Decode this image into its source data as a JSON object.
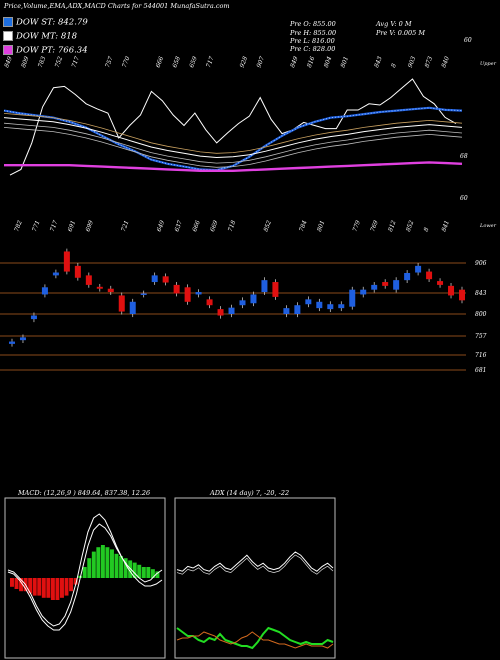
{
  "header": {
    "title": "Price,Volume,EMA,ADX,MACD Charts for 544001 MunafaSutra.com",
    "stats": [
      {
        "label": "Pre  O:",
        "value": "855.00"
      },
      {
        "label": "Pre  H:",
        "value": "855.00"
      },
      {
        "label": "Pre  L:",
        "value": "816.00"
      },
      {
        "label": "Pre  C:",
        "value": "828.00"
      }
    ],
    "avg_v": "Avg V: 0  M",
    "pre_v": "Pre  V: 0.005 M"
  },
  "legend": [
    {
      "label": "DOW ST:",
      "value": "842.79",
      "color": "#1e6fe0"
    },
    {
      "label": "DOW MT:",
      "value": "818",
      "color": "#ffffff"
    },
    {
      "label": "DOW PT:",
      "value": "766.34",
      "color": "#e040e0"
    }
  ],
  "colors": {
    "up": "#1f5fe0",
    "down": "#e01010",
    "grid": "#8a4a1a",
    "macd_pos": "#22c922",
    "macd_neg": "#e01010",
    "adx_white": "#ffffff",
    "adx_green": "#22dd22",
    "adx_orange": "#d2691e"
  },
  "chart_data": [
    {
      "type": "line",
      "panel": "price_ema",
      "top_labels": [
        "849",
        "809",
        "783",
        "752",
        "717",
        "",
        "757",
        "770",
        "",
        "666",
        "658",
        "659",
        "717",
        "",
        "928",
        "907",
        "",
        "849",
        "816",
        "804",
        "801",
        "",
        "843",
        "8",
        "903",
        "873",
        "840"
      ],
      "right_labels": [
        "60",
        "68",
        "60"
      ],
      "corner_label": "Upper",
      "series": [
        {
          "name": "DOW ST",
          "values": [
            842,
            838,
            835,
            832,
            826,
            818,
            806,
            794,
            784,
            772,
            766,
            762,
            758,
            757,
            763,
            776,
            792,
            806,
            818,
            826,
            832,
            834,
            837,
            840,
            842,
            844,
            846,
            843,
            842
          ]
        },
        {
          "name": "DOW MT",
          "values": [
            832,
            830,
            828,
            826,
            822,
            817,
            811,
            804,
            797,
            790,
            785,
            781,
            777,
            775,
            776,
            779,
            784,
            790,
            796,
            801,
            805,
            808,
            812,
            815,
            818,
            820,
            822,
            820,
            818
          ]
        },
        {
          "name": "DOW PT",
          "values": [
            764,
            764,
            764,
            764,
            764,
            763,
            762,
            761,
            760,
            759,
            758,
            757,
            756,
            756,
            756,
            757,
            758,
            759,
            760,
            761,
            762,
            763,
            764,
            765,
            766,
            767,
            768,
            767,
            766
          ]
        }
      ]
    },
    {
      "type": "candlestick",
      "panel": "price",
      "corner_label": "Lower",
      "top_labels": [
        "782",
        "771",
        "717",
        "691",
        "699",
        "",
        "721",
        "",
        "649",
        "637",
        "666",
        "669",
        "718",
        "",
        "852",
        "",
        "784",
        "801",
        "",
        "779",
        "769",
        "812",
        "852",
        "8",
        "841"
      ],
      "y_axis_labels": [
        "906",
        "843",
        "800",
        "757",
        "716",
        "681"
      ],
      "candles": [
        {
          "o": 740,
          "c": 745
        },
        {
          "o": 748,
          "c": 754
        },
        {
          "o": 790,
          "c": 797
        },
        {
          "o": 840,
          "c": 855
        },
        {
          "o": 880,
          "c": 886
        },
        {
          "o": 930,
          "c": 888
        },
        {
          "o": 900,
          "c": 875
        },
        {
          "o": 880,
          "c": 860
        },
        {
          "o": 856,
          "c": 852
        },
        {
          "o": 852,
          "c": 845
        },
        {
          "o": 838,
          "c": 805
        },
        {
          "o": 800,
          "c": 825
        },
        {
          "o": 840,
          "c": 842
        },
        {
          "o": 866,
          "c": 880
        },
        {
          "o": 878,
          "c": 865
        },
        {
          "o": 860,
          "c": 842
        },
        {
          "o": 855,
          "c": 825
        },
        {
          "o": 840,
          "c": 845
        },
        {
          "o": 830,
          "c": 818
        },
        {
          "o": 810,
          "c": 797
        },
        {
          "o": 800,
          "c": 813
        },
        {
          "o": 818,
          "c": 828
        },
        {
          "o": 822,
          "c": 840
        },
        {
          "o": 845,
          "c": 870
        },
        {
          "o": 866,
          "c": 835
        },
        {
          "o": 800,
          "c": 812
        },
        {
          "o": 800,
          "c": 818
        },
        {
          "o": 820,
          "c": 830
        },
        {
          "o": 812,
          "c": 825
        },
        {
          "o": 810,
          "c": 820
        },
        {
          "o": 812,
          "c": 820
        },
        {
          "o": 815,
          "c": 850
        },
        {
          "o": 840,
          "c": 850
        },
        {
          "o": 850,
          "c": 860
        },
        {
          "o": 866,
          "c": 858
        },
        {
          "o": 850,
          "c": 870
        },
        {
          "o": 870,
          "c": 885
        },
        {
          "o": 886,
          "c": 900
        },
        {
          "o": 888,
          "c": 872
        },
        {
          "o": 868,
          "c": 860
        },
        {
          "o": 858,
          "c": 838
        },
        {
          "o": 850,
          "c": 828
        }
      ]
    },
    {
      "type": "bar",
      "panel": "macd",
      "label": "MACD: (12,26,9 ) 849.64, 837.38, 12.26",
      "values": [
        -4,
        -5,
        -6,
        -6,
        -7,
        -8,
        -8,
        -9,
        -9,
        -10,
        -10,
        -9,
        -8,
        -6,
        -3,
        1,
        5,
        9,
        12,
        14,
        15,
        14,
        13,
        11,
        10,
        9,
        8,
        7,
        6,
        5,
        5,
        4,
        3
      ]
    },
    {
      "type": "line",
      "panel": "adx",
      "label": "ADX    (14  day) 7, -20, -22",
      "series": [
        {
          "name": "ADX",
          "values": [
            38,
            36,
            42,
            40,
            44,
            38,
            36,
            42,
            46,
            40,
            38,
            44,
            50,
            56,
            48,
            42,
            46,
            40,
            38,
            40,
            46,
            54,
            60,
            56,
            48,
            40,
            36,
            42,
            46,
            40
          ]
        },
        {
          "name": "+DI",
          "values": [
            16,
            14,
            12,
            12,
            10,
            9,
            11,
            10,
            13,
            10,
            9,
            8,
            7,
            7,
            6,
            9,
            13,
            16,
            15,
            14,
            12,
            10,
            9,
            8,
            9,
            8,
            8,
            8,
            10,
            9
          ]
        },
        {
          "name": "-DI",
          "values": [
            10,
            11,
            11,
            12,
            12,
            14,
            13,
            12,
            10,
            9,
            8,
            9,
            11,
            12,
            14,
            12,
            10,
            10,
            9,
            8,
            8,
            7,
            6,
            7,
            8,
            7,
            7,
            7,
            6,
            8
          ]
        }
      ]
    }
  ]
}
